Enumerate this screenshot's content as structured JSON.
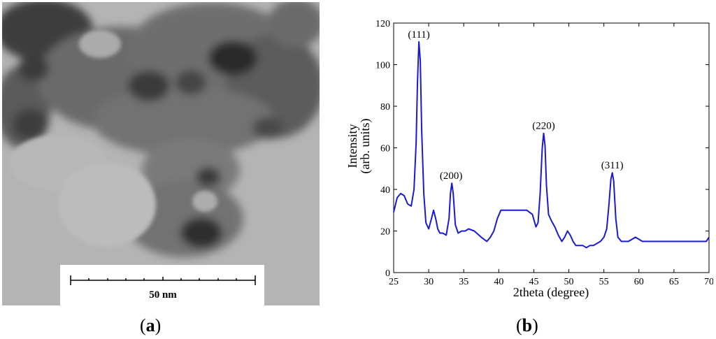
{
  "panel_a": {
    "label_open": "(",
    "label_letter": "a",
    "label_close": ")",
    "scale_bar_text": "50 nm"
  },
  "panel_b": {
    "label_open": "(",
    "label_letter": "b",
    "label_close": ")"
  },
  "chart_data": {
    "type": "line",
    "title": "",
    "xlabel": "2theta (degree)",
    "ylabel_lines": [
      "Intensity",
      "(arb. units)"
    ],
    "xlim": [
      25,
      70
    ],
    "ylim": [
      0,
      120
    ],
    "xticks": [
      25,
      30,
      35,
      40,
      45,
      50,
      55,
      60,
      65,
      70
    ],
    "yticks": [
      0,
      20,
      40,
      60,
      80,
      100,
      120
    ],
    "grid": false,
    "line_color": "#1a1ad6",
    "annotations": [
      {
        "text": "(111)",
        "x": 28.6,
        "y": 111
      },
      {
        "text": "(200)",
        "x": 33.2,
        "y": 43
      },
      {
        "text": "(220)",
        "x": 46.4,
        "y": 67
      },
      {
        "text": "(311)",
        "x": 56.2,
        "y": 48
      }
    ],
    "series": [
      {
        "x": [
          25,
          25.5,
          26,
          26.5,
          27,
          27.5,
          27.9,
          28.2,
          28.4,
          28.6,
          28.8,
          29.0,
          29.3,
          29.6,
          30.0,
          30.4,
          30.7,
          31.0,
          31.3,
          31.6,
          32.0,
          32.5,
          32.9,
          33.1,
          33.3,
          33.5,
          33.8,
          34.2,
          34.7,
          35.2,
          35.7,
          36.5,
          37.5,
          38.3,
          38.8,
          39.3,
          39.8,
          40.3,
          41.0,
          42.0,
          43.0,
          44.0,
          44.8,
          45.3,
          45.6,
          45.9,
          46.2,
          46.4,
          46.6,
          46.8,
          47.1,
          47.5,
          48.0,
          48.5,
          49.0,
          49.4,
          49.8,
          50.2,
          50.6,
          51.0,
          51.5,
          52.0,
          52.5,
          53.0,
          53.5,
          54.0,
          54.5,
          55.0,
          55.4,
          55.7,
          56.0,
          56.2,
          56.4,
          56.7,
          57.0,
          57.5,
          58.0,
          58.5,
          59.0,
          59.5,
          60.0,
          60.5,
          61.0,
          62.0,
          63.0,
          64.0,
          65.0,
          66.0,
          67.0,
          68.0,
          69.0,
          69.6,
          70.0
        ],
        "y": [
          29,
          36,
          38,
          37,
          33,
          32,
          40,
          62,
          92,
          111,
          102,
          68,
          38,
          24,
          21,
          26,
          30,
          26,
          21,
          19,
          19,
          18,
          26,
          38,
          43,
          38,
          23,
          19,
          20,
          20,
          21,
          20,
          17,
          15,
          17,
          20,
          26,
          30,
          30,
          30,
          30,
          30,
          28,
          22,
          24,
          38,
          60,
          67,
          61,
          42,
          28,
          25,
          22,
          18,
          15,
          17,
          20,
          18,
          15,
          13,
          13,
          13,
          12,
          13,
          13,
          14,
          15,
          17,
          21,
          32,
          45,
          48,
          44,
          26,
          17,
          15,
          15,
          15,
          16,
          17,
          16,
          15,
          15,
          15,
          15,
          15,
          15,
          15,
          15,
          15,
          15,
          15,
          17
        ]
      }
    ]
  }
}
